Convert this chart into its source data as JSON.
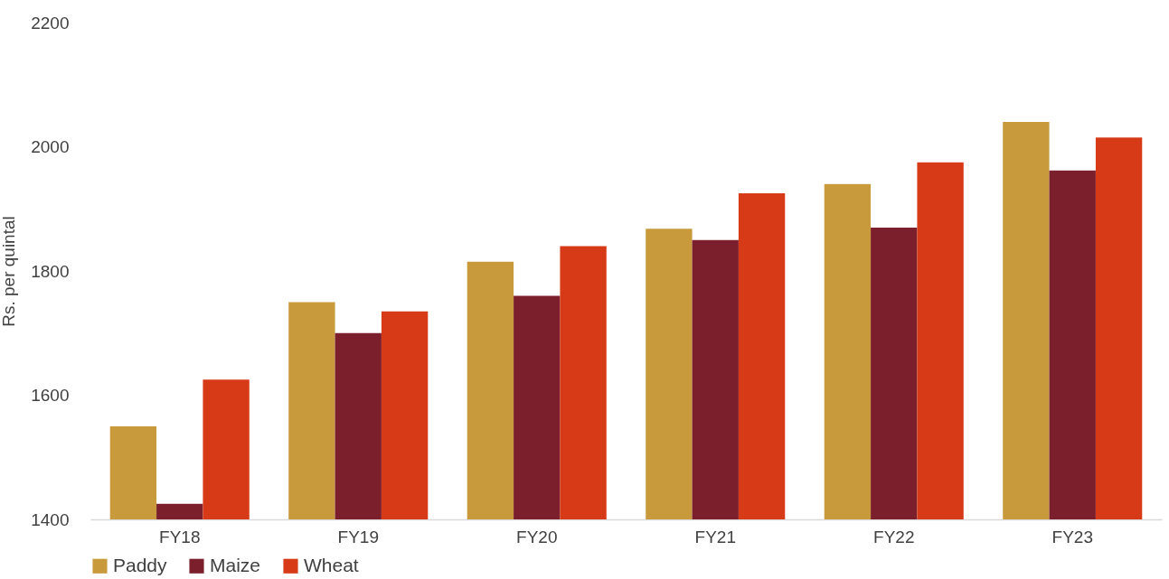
{
  "chart_data": {
    "type": "bar",
    "ylabel": "Rs. per quintal",
    "categories": [
      "FY18",
      "FY19",
      "FY20",
      "FY21",
      "FY22",
      "FY23"
    ],
    "series": [
      {
        "name": "Paddy",
        "color": "#c89a3c",
        "values": [
          1550,
          1750,
          1815,
          1868,
          1940,
          2040
        ]
      },
      {
        "name": "Maize",
        "color": "#7b1f2c",
        "values": [
          1425,
          1700,
          1760,
          1850,
          1870,
          1962
        ]
      },
      {
        "name": "Wheat",
        "color": "#d63a17",
        "values": [
          1625,
          1735,
          1840,
          1925,
          1975,
          2015
        ]
      }
    ],
    "ylim": [
      1400,
      2200
    ],
    "yticks": [
      1400,
      1600,
      1800,
      2000,
      2200
    ],
    "grid": false,
    "legend": "bottom"
  }
}
